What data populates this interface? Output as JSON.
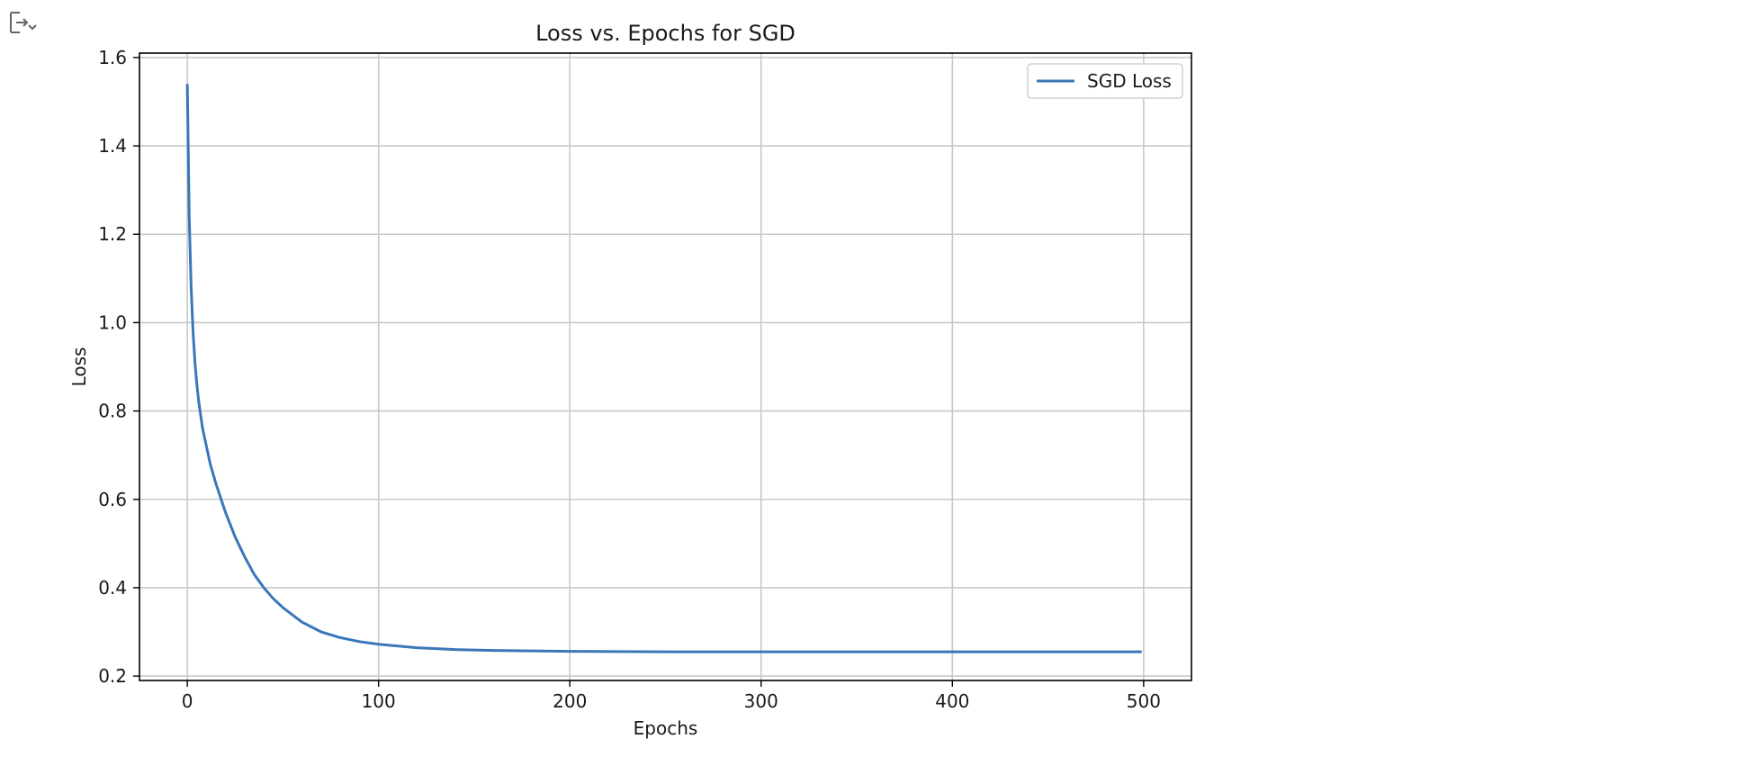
{
  "toolbar": {
    "output_icon": "output-collapse-icon"
  },
  "colors": {
    "series": "#3a76b8",
    "grid": "#c8c8c8",
    "axes": "#000000",
    "text": "#1a1a1a",
    "legend_border": "#d0d0d0"
  },
  "chart_data": {
    "type": "line",
    "title": "Loss vs. Epochs for SGD",
    "xlabel": "Epochs",
    "ylabel": "Loss",
    "xlim": [
      -25,
      525
    ],
    "ylim": [
      0.19,
      1.61
    ],
    "xticks": [
      0,
      100,
      200,
      300,
      400,
      500
    ],
    "xtick_labels": [
      "0",
      "100",
      "200",
      "300",
      "400",
      "500"
    ],
    "yticks": [
      0.2,
      0.4,
      0.6,
      0.8,
      1.0,
      1.2,
      1.4,
      1.6
    ],
    "ytick_labels": [
      "0.2",
      "0.4",
      "0.6",
      "0.8",
      "1.0",
      "1.2",
      "1.4",
      "1.6"
    ],
    "grid": true,
    "legend_position": "top-right",
    "series": [
      {
        "name": "SGD Loss",
        "x": [
          0,
          1,
          2,
          3,
          4,
          5,
          6,
          8,
          10,
          12,
          15,
          20,
          25,
          30,
          35,
          40,
          45,
          50,
          60,
          70,
          80,
          90,
          100,
          120,
          140,
          160,
          180,
          200,
          250,
          300,
          350,
          400,
          450,
          499
        ],
        "y": [
          1.54,
          1.24,
          1.08,
          0.98,
          0.91,
          0.86,
          0.82,
          0.76,
          0.72,
          0.68,
          0.635,
          0.57,
          0.515,
          0.47,
          0.43,
          0.4,
          0.375,
          0.355,
          0.322,
          0.3,
          0.287,
          0.278,
          0.272,
          0.264,
          0.26,
          0.258,
          0.257,
          0.256,
          0.255,
          0.255,
          0.255,
          0.255,
          0.255,
          0.255
        ]
      }
    ]
  }
}
